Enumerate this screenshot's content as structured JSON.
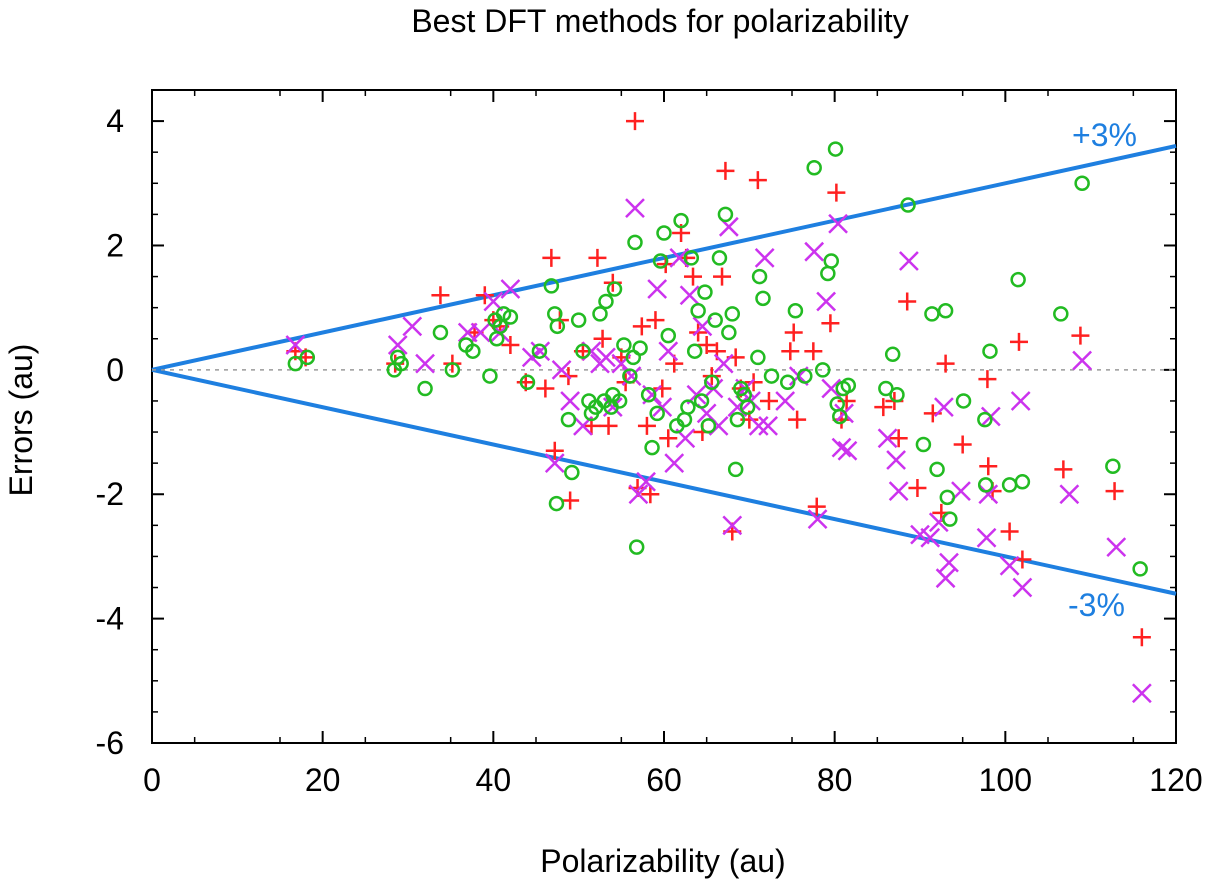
{
  "chart_data": {
    "type": "scatter",
    "title": "Best DFT methods for polarizability",
    "xlabel": "Polarizability (au)",
    "ylabel": "Errors (au)",
    "xlim": [
      0,
      120
    ],
    "ylim": [
      -6,
      4.5
    ],
    "x_ticks": [
      0,
      20,
      40,
      60,
      80,
      100,
      120
    ],
    "y_ticks": [
      -6,
      -4,
      -2,
      0,
      2,
      4
    ],
    "grid": false,
    "legend": "none",
    "reference_lines": [
      {
        "label": "+3%",
        "slope": 0.03,
        "color": "#1e7fe0"
      },
      {
        "label": "-3%",
        "slope": -0.03,
        "color": "#1e7fe0"
      },
      {
        "label": "",
        "slope": 0,
        "color": "#9a9a9a",
        "style": "dotted"
      }
    ],
    "series": [
      {
        "marker": "plus",
        "color": "#ff2020",
        "points": [
          [
            16.8,
            0.3
          ],
          [
            18,
            0.2
          ],
          [
            28.5,
            0.1
          ],
          [
            33.8,
            1.2
          ],
          [
            35.2,
            0.1
          ],
          [
            37.8,
            0.6
          ],
          [
            39,
            1.2
          ],
          [
            40,
            0.8
          ],
          [
            40.8,
            0.7
          ],
          [
            42,
            0.4
          ],
          [
            43.8,
            -0.2
          ],
          [
            46.1,
            -0.3
          ],
          [
            46.8,
            1.8
          ],
          [
            47.2,
            -1.3
          ],
          [
            47.8,
            0.8
          ],
          [
            48.8,
            -0.1
          ],
          [
            49,
            -2.1
          ],
          [
            50.5,
            0.3
          ],
          [
            51.5,
            -0.9
          ],
          [
            52.2,
            1.8
          ],
          [
            52.8,
            0.5
          ],
          [
            53.5,
            -0.9
          ],
          [
            54,
            1.4
          ],
          [
            55,
            0.2
          ],
          [
            55.5,
            -0.2
          ],
          [
            56.6,
            4
          ],
          [
            56.9,
            -1.9
          ],
          [
            57.4,
            0.7
          ],
          [
            58,
            -0.9
          ],
          [
            58.4,
            -2
          ],
          [
            59,
            0.8
          ],
          [
            59.8,
            -0.3
          ],
          [
            60.2,
            1.7
          ],
          [
            60.5,
            -1.1
          ],
          [
            61.2,
            0.1
          ],
          [
            62,
            2.2
          ],
          [
            62.6,
            1.8
          ],
          [
            63.4,
            1.5
          ],
          [
            64,
            0.6
          ],
          [
            64.5,
            -1
          ],
          [
            65,
            0.4
          ],
          [
            65.6,
            -0.1
          ],
          [
            66.2,
            0.3
          ],
          [
            66.8,
            1.5
          ],
          [
            67.2,
            3.2
          ],
          [
            68,
            -2.6
          ],
          [
            68.4,
            0.2
          ],
          [
            69,
            -0.3
          ],
          [
            70,
            -0.8
          ],
          [
            70.5,
            -0.2
          ],
          [
            71,
            3.05
          ],
          [
            72.3,
            -0.5
          ],
          [
            74.8,
            0.3
          ],
          [
            75.2,
            0.6
          ],
          [
            75.6,
            -0.8
          ],
          [
            77.5,
            0.3
          ],
          [
            77.9,
            -2.2
          ],
          [
            79.5,
            0.75
          ],
          [
            80.2,
            2.85
          ],
          [
            80.8,
            -0.8
          ],
          [
            81.4,
            -0.5
          ],
          [
            85.7,
            -0.6
          ],
          [
            87,
            -0.5
          ],
          [
            87.5,
            -1.1
          ],
          [
            88.5,
            1.1
          ],
          [
            89.7,
            -1.9
          ],
          [
            91.5,
            -0.7
          ],
          [
            92.5,
            -2.3
          ],
          [
            93,
            0.1
          ],
          [
            95,
            -1.2
          ],
          [
            97.9,
            -0.15
          ],
          [
            98,
            -1.55
          ],
          [
            98.5,
            -1.95
          ],
          [
            100.5,
            -2.6
          ],
          [
            101.6,
            0.45
          ],
          [
            102,
            -3.05
          ],
          [
            106.8,
            -1.6
          ],
          [
            108.8,
            0.55
          ],
          [
            112.8,
            -1.95
          ],
          [
            116,
            -4.3
          ]
        ]
      },
      {
        "marker": "cross",
        "color": "#cc33ee",
        "points": [
          [
            16.8,
            0.4
          ],
          [
            28.8,
            0.4
          ],
          [
            30.5,
            0.7
          ],
          [
            32,
            0.1
          ],
          [
            37,
            0.6
          ],
          [
            38.5,
            0.6
          ],
          [
            40,
            1.1
          ],
          [
            40.8,
            0.6
          ],
          [
            42,
            1.3
          ],
          [
            44.5,
            0.2
          ],
          [
            45.5,
            0.3
          ],
          [
            47.2,
            -1.5
          ],
          [
            48,
            0
          ],
          [
            49,
            -0.5
          ],
          [
            50.5,
            -0.9
          ],
          [
            51.5,
            0.3
          ],
          [
            52.5,
            0.1
          ],
          [
            53.2,
            0.2
          ],
          [
            54,
            -0.6
          ],
          [
            55,
            0.1
          ],
          [
            56.2,
            -0.1
          ],
          [
            56.6,
            2.6
          ],
          [
            57,
            -2
          ],
          [
            57.9,
            -1.8
          ],
          [
            58.6,
            -0.4
          ],
          [
            59.2,
            1.3
          ],
          [
            59.8,
            -0.6
          ],
          [
            60.5,
            0.3
          ],
          [
            61.2,
            -1.5
          ],
          [
            61.8,
            1.8
          ],
          [
            62.5,
            -1.1
          ],
          [
            63,
            1.2
          ],
          [
            63.8,
            -0.4
          ],
          [
            64.5,
            0.7
          ],
          [
            65,
            -0.7
          ],
          [
            65.8,
            -0.3
          ],
          [
            66.4,
            -0.9
          ],
          [
            67,
            0.1
          ],
          [
            67.6,
            2.3
          ],
          [
            68,
            -2.5
          ],
          [
            68.6,
            -0.6
          ],
          [
            69.5,
            -0.3
          ],
          [
            70.2,
            -0.5
          ],
          [
            71.1,
            -0.9
          ],
          [
            71.8,
            1.8
          ],
          [
            72.2,
            -0.9
          ],
          [
            74.2,
            -0.5
          ],
          [
            75.8,
            -0.1
          ],
          [
            77.6,
            1.9
          ],
          [
            78,
            -2.4
          ],
          [
            79,
            1.1
          ],
          [
            79.6,
            -0.3
          ],
          [
            80.4,
            2.35
          ],
          [
            80.8,
            -1.25
          ],
          [
            81.1,
            -0.7
          ],
          [
            81.5,
            -1.3
          ],
          [
            86.2,
            -1.1
          ],
          [
            87.2,
            -1.45
          ],
          [
            87.5,
            -1.95
          ],
          [
            88.7,
            1.75
          ],
          [
            90,
            -2.65
          ],
          [
            91.2,
            -2.7
          ],
          [
            92.2,
            -2.45
          ],
          [
            92.8,
            -0.6
          ],
          [
            93,
            -3.35
          ],
          [
            93.4,
            -3.1
          ],
          [
            94.8,
            -1.95
          ],
          [
            97.8,
            -2.7
          ],
          [
            98,
            -2
          ],
          [
            98.3,
            -0.75
          ],
          [
            100.5,
            -3.15
          ],
          [
            101.8,
            -0.5
          ],
          [
            102,
            -3.5
          ],
          [
            107.5,
            -2
          ],
          [
            109,
            0.15
          ],
          [
            113,
            -2.85
          ],
          [
            116,
            -5.2
          ]
        ]
      },
      {
        "marker": "circle",
        "color": "#22bb22",
        "points": [
          [
            16.8,
            0.1
          ],
          [
            18.2,
            0.2
          ],
          [
            28.4,
            0
          ],
          [
            28.8,
            0.2
          ],
          [
            29.2,
            0.1
          ],
          [
            32,
            -0.3
          ],
          [
            33.8,
            0.6
          ],
          [
            35.2,
            0
          ],
          [
            36.8,
            0.4
          ],
          [
            37.6,
            0.3
          ],
          [
            39.6,
            -0.1
          ],
          [
            40.2,
            0.8
          ],
          [
            40.4,
            0.5
          ],
          [
            40.8,
            0.7
          ],
          [
            41.2,
            0.9
          ],
          [
            42,
            0.85
          ],
          [
            44,
            -0.2
          ],
          [
            45.4,
            0.3
          ],
          [
            46.8,
            1.35
          ],
          [
            47.2,
            0.9
          ],
          [
            47.5,
            0.7
          ],
          [
            47.4,
            -2.15
          ],
          [
            48.8,
            -0.8
          ],
          [
            49.2,
            -1.65
          ],
          [
            50,
            0.8
          ],
          [
            50.5,
            0.3
          ],
          [
            51.2,
            -0.5
          ],
          [
            51.5,
            -0.7
          ],
          [
            52,
            -0.6
          ],
          [
            52.5,
            0.9
          ],
          [
            53,
            -0.5
          ],
          [
            53.2,
            1.1
          ],
          [
            53.8,
            -0.6
          ],
          [
            54,
            -0.4
          ],
          [
            54.2,
            1.3
          ],
          [
            54.8,
            -0.5
          ],
          [
            55.3,
            0.4
          ],
          [
            56,
            -0.1
          ],
          [
            56.4,
            0.2
          ],
          [
            56.6,
            2.05
          ],
          [
            56.8,
            -2.85
          ],
          [
            57.2,
            0.35
          ],
          [
            58.2,
            -0.4
          ],
          [
            58.6,
            -1.25
          ],
          [
            59.2,
            -0.7
          ],
          [
            59.6,
            1.75
          ],
          [
            60,
            2.2
          ],
          [
            60.5,
            0.55
          ],
          [
            61.5,
            -0.9
          ],
          [
            62,
            2.4
          ],
          [
            62.4,
            -0.8
          ],
          [
            62.8,
            -0.6
          ],
          [
            63.2,
            1.8
          ],
          [
            63.6,
            0.3
          ],
          [
            64,
            0.95
          ],
          [
            64.4,
            -0.5
          ],
          [
            64.8,
            1.25
          ],
          [
            65.2,
            -0.9
          ],
          [
            65.6,
            -0.2
          ],
          [
            66,
            0.8
          ],
          [
            66.5,
            1.8
          ],
          [
            67.2,
            2.5
          ],
          [
            67.6,
            0.6
          ],
          [
            68,
            0.9
          ],
          [
            68.4,
            -1.6
          ],
          [
            68.6,
            -0.8
          ],
          [
            69,
            -0.3
          ],
          [
            69.4,
            -0.4
          ],
          [
            69.8,
            -0.6
          ],
          [
            71,
            0.2
          ],
          [
            71.2,
            1.5
          ],
          [
            71.6,
            1.15
          ],
          [
            72.6,
            -0.1
          ],
          [
            74.5,
            -0.2
          ],
          [
            75.4,
            0.95
          ],
          [
            76.5,
            -0.1
          ],
          [
            77.6,
            3.25
          ],
          [
            78.6,
            0
          ],
          [
            79.2,
            1.55
          ],
          [
            79.6,
            1.75
          ],
          [
            80.1,
            3.55
          ],
          [
            80.3,
            -0.55
          ],
          [
            80.6,
            -0.75
          ],
          [
            81,
            -0.3
          ],
          [
            81.6,
            -0.25
          ],
          [
            86,
            -0.3
          ],
          [
            86.8,
            0.25
          ],
          [
            87.3,
            -0.4
          ],
          [
            88.6,
            2.65
          ],
          [
            90.4,
            -1.2
          ],
          [
            91.4,
            0.9
          ],
          [
            92,
            -1.6
          ],
          [
            93,
            0.95
          ],
          [
            93.2,
            -2.05
          ],
          [
            93.5,
            -2.4
          ],
          [
            95.1,
            -0.5
          ],
          [
            97.6,
            -0.8
          ],
          [
            97.7,
            -1.85
          ],
          [
            98.2,
            0.3
          ],
          [
            100.5,
            -1.85
          ],
          [
            101.5,
            1.45
          ],
          [
            102,
            -1.8
          ],
          [
            106.5,
            0.9
          ],
          [
            109,
            3
          ],
          [
            112.6,
            -1.55
          ],
          [
            115.8,
            -3.2
          ]
        ]
      }
    ]
  }
}
